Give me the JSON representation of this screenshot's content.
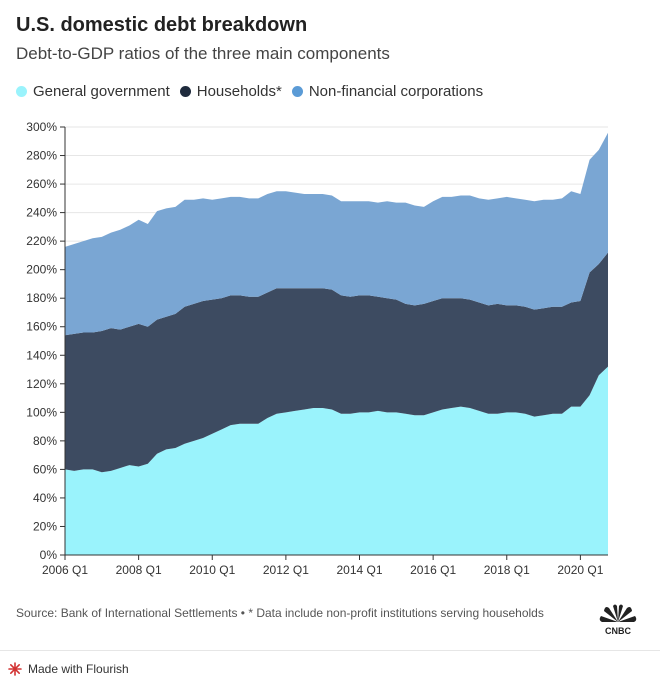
{
  "title": "U.S. domestic debt breakdown",
  "subtitle": "Debt-to-GDP ratios of the three main components",
  "source": "Source: Bank of International Settlements • * Data include non-profit institutions serving households",
  "logo": "CNBC",
  "made_with": "Made with Flourish",
  "colors": {
    "government": "#9af3fc",
    "households": "#3d4b61",
    "corporations": "#7aa6d3",
    "corporations_swatch": "#5b9bd6",
    "households_swatch": "#1e2a3c",
    "grid": "#e6e6e6",
    "axis": "#333333",
    "flourish": "#d23232"
  },
  "chart_data": {
    "type": "area",
    "stacked": true,
    "title": "U.S. domestic debt breakdown",
    "subtitle": "Debt-to-GDP ratios of the three main components",
    "x_tick_labels": [
      "2006 Q1",
      "2008 Q1",
      "2010 Q1",
      "2012 Q1",
      "2014 Q1",
      "2016 Q1",
      "2018 Q1",
      "2020 Q1"
    ],
    "y_tick_labels": [
      "0%",
      "20%",
      "40%",
      "60%",
      "80%",
      "100%",
      "120%",
      "140%",
      "160%",
      "180%",
      "200%",
      "220%",
      "240%",
      "260%",
      "280%",
      "300%"
    ],
    "ylim": [
      0,
      300
    ],
    "x": [
      "2006 Q1",
      "2006 Q2",
      "2006 Q3",
      "2006 Q4",
      "2007 Q1",
      "2007 Q2",
      "2007 Q3",
      "2007 Q4",
      "2008 Q1",
      "2008 Q2",
      "2008 Q3",
      "2008 Q4",
      "2009 Q1",
      "2009 Q2",
      "2009 Q3",
      "2009 Q4",
      "2010 Q1",
      "2010 Q2",
      "2010 Q3",
      "2010 Q4",
      "2011 Q1",
      "2011 Q2",
      "2011 Q3",
      "2011 Q4",
      "2012 Q1",
      "2012 Q2",
      "2012 Q3",
      "2012 Q4",
      "2013 Q1",
      "2013 Q2",
      "2013 Q3",
      "2013 Q4",
      "2014 Q1",
      "2014 Q2",
      "2014 Q3",
      "2014 Q4",
      "2015 Q1",
      "2015 Q2",
      "2015 Q3",
      "2015 Q4",
      "2016 Q1",
      "2016 Q2",
      "2016 Q3",
      "2016 Q4",
      "2017 Q1",
      "2017 Q2",
      "2017 Q3",
      "2017 Q4",
      "2018 Q1",
      "2018 Q2",
      "2018 Q3",
      "2018 Q4",
      "2019 Q1",
      "2019 Q2",
      "2019 Q3",
      "2019 Q4",
      "2020 Q1",
      "2020 Q2",
      "2020 Q3",
      "2020 Q4"
    ],
    "grid": true,
    "legend_position": "top-left",
    "series": [
      {
        "name": "General government",
        "values": [
          60,
          59,
          60,
          60,
          58,
          59,
          61,
          63,
          62,
          64,
          71,
          74,
          75,
          78,
          80,
          82,
          85,
          88,
          91,
          92,
          92,
          92,
          96,
          99,
          100,
          101,
          102,
          103,
          103,
          102,
          99,
          99,
          100,
          100,
          101,
          100,
          100,
          99,
          98,
          98,
          100,
          102,
          103,
          104,
          103,
          101,
          99,
          99,
          100,
          100,
          99,
          97,
          98,
          99,
          99,
          104,
          104,
          112,
          126,
          132
        ]
      },
      {
        "name": "Households*",
        "values": [
          94,
          96,
          96,
          96,
          99,
          100,
          97,
          97,
          100,
          96,
          94,
          93,
          94,
          96,
          96,
          96,
          94,
          92,
          91,
          90,
          89,
          89,
          88,
          88,
          87,
          86,
          85,
          84,
          84,
          84,
          83,
          82,
          82,
          82,
          80,
          80,
          79,
          77,
          77,
          78,
          78,
          78,
          77,
          76,
          76,
          76,
          76,
          77,
          75,
          75,
          75,
          75,
          75,
          75,
          75,
          73,
          74,
          86,
          78,
          80
        ]
      },
      {
        "name": "Non-financial corporations",
        "values": [
          62,
          63,
          64,
          66,
          66,
          67,
          70,
          71,
          73,
          72,
          76,
          76,
          75,
          75,
          73,
          72,
          70,
          70,
          69,
          69,
          69,
          69,
          69,
          68,
          68,
          67,
          66,
          66,
          66,
          66,
          66,
          67,
          66,
          66,
          66,
          68,
          68,
          71,
          70,
          68,
          70,
          71,
          71,
          72,
          73,
          73,
          74,
          74,
          76,
          75,
          75,
          76,
          76,
          75,
          76,
          78,
          75,
          79,
          80,
          84
        ]
      }
    ]
  }
}
